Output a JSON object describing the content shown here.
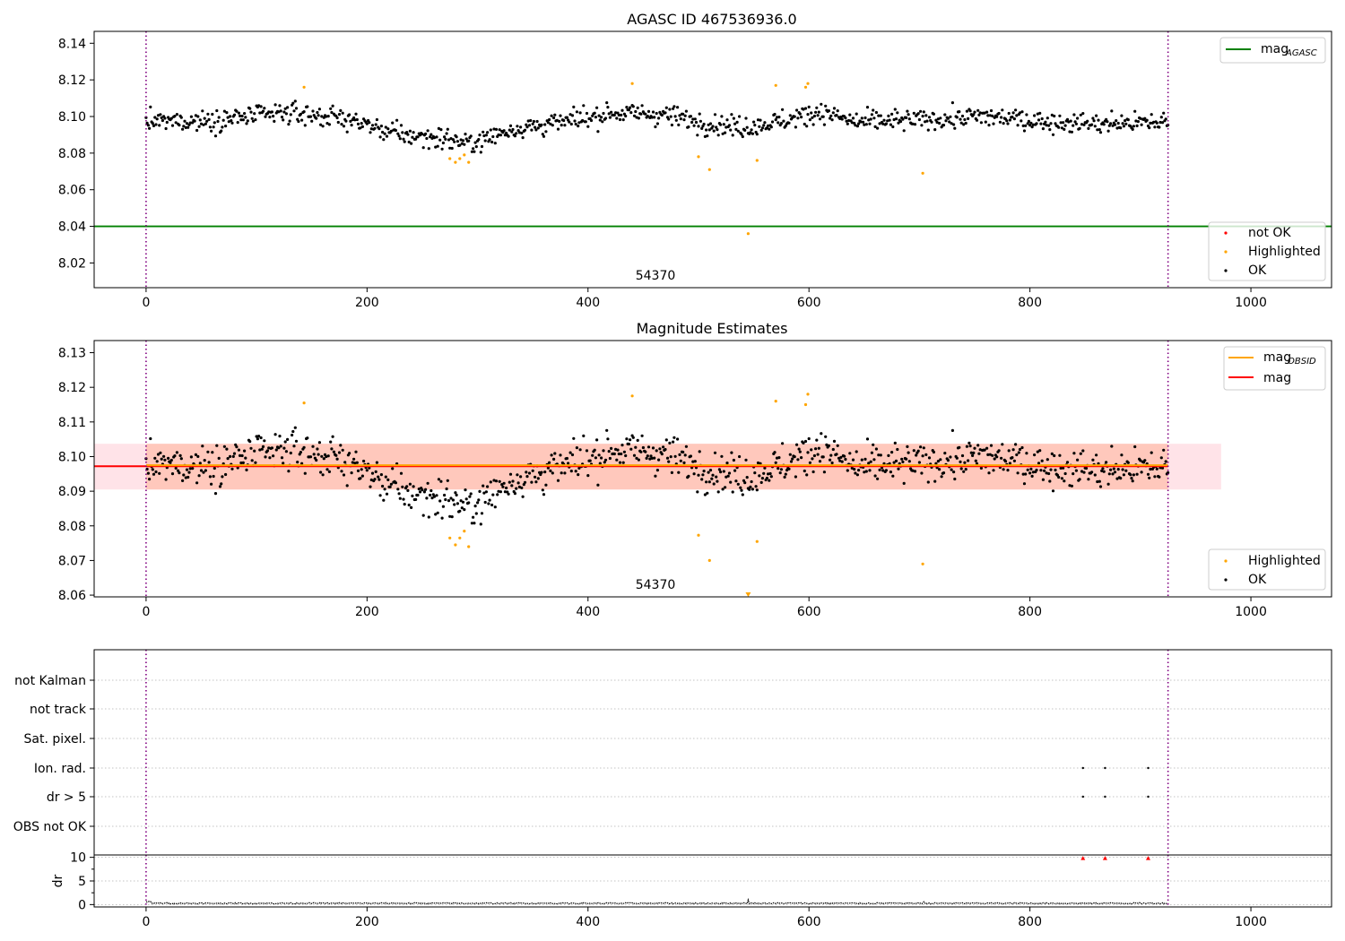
{
  "chart_data": [
    {
      "type": "scatter",
      "title": "AGASC ID 467536936.0",
      "xlabel": "",
      "ylabel": "",
      "xlim": [
        -47,
        1073
      ],
      "ylim": [
        8.0065,
        8.1465
      ],
      "x_ticks": [
        0,
        200,
        400,
        600,
        800,
        1000
      ],
      "y_ticks": [
        8.02,
        8.04,
        8.06,
        8.08,
        8.1,
        8.12,
        8.14
      ],
      "y_tick_labels": [
        "8.02",
        "8.04",
        "8.06",
        "8.08",
        "8.10",
        "8.12",
        "8.14"
      ],
      "grid": false,
      "obsid_markers_x": [
        0,
        925
      ],
      "obsid_label": {
        "text": "54370",
        "x": 462,
        "y": 8.0105
      },
      "hlines": [
        {
          "name": "mag_AGASC",
          "y": 8.04,
          "x_end": 1073,
          "color": "#008000"
        }
      ],
      "legend_lines": {
        "placement": "top-right",
        "entries": [
          {
            "label": "mag",
            "sub": "AGASC",
            "color": "#008000"
          }
        ]
      },
      "legend_points": {
        "placement": "bottom-right",
        "entries": [
          {
            "label": "not OK",
            "color": "#ff0000"
          },
          {
            "label": "Highlighted",
            "color": "#ffa500"
          },
          {
            "label": "OK",
            "color": "#000000"
          }
        ]
      },
      "series": [
        {
          "name": "Highlighted",
          "color": "#ffa500",
          "points": [
            [
              143,
              8.116
            ],
            [
              275,
              8.077
            ],
            [
              280,
              8.075
            ],
            [
              284,
              8.077
            ],
            [
              288,
              8.079
            ],
            [
              292,
              8.075
            ],
            [
              440,
              8.118
            ],
            [
              500,
              8.078
            ],
            [
              510,
              8.071
            ],
            [
              545,
              8.036
            ],
            [
              553,
              8.076
            ],
            [
              570,
              8.117
            ],
            [
              597,
              8.116
            ],
            [
              599,
              8.118
            ],
            [
              703,
              8.069
            ]
          ]
        },
        {
          "name": "OK",
          "color": "#000000",
          "generated": true,
          "x_range": [
            0,
            925
          ]
        }
      ]
    },
    {
      "type": "scatter",
      "title": "Magnitude Estimates",
      "xlabel": "",
      "ylabel": "",
      "xlim": [
        -47,
        1073
      ],
      "ylim": [
        8.0595,
        8.1335
      ],
      "x_ticks": [
        0,
        200,
        400,
        600,
        800,
        1000
      ],
      "y_ticks": [
        8.06,
        8.07,
        8.08,
        8.09,
        8.1,
        8.11,
        8.12,
        8.13
      ],
      "y_tick_labels": [
        "8.06",
        "8.07",
        "8.08",
        "8.09",
        "8.10",
        "8.11",
        "8.12",
        "8.13"
      ],
      "grid": false,
      "obsid_markers_x": [
        0,
        925
      ],
      "obsid_label": {
        "text": "54370",
        "x": 462,
        "y": 8.0615
      },
      "bands": [
        {
          "name": "mag_OBSID_band",
          "x_range": [
            0,
            925
          ],
          "y_range": [
            8.0905,
            8.1037
          ],
          "color": "#ffa07a"
        },
        {
          "name": "mag_band",
          "x_range": [
            -47,
            973
          ],
          "y_range": [
            8.0905,
            8.1037
          ],
          "color": "#ffc0cb"
        }
      ],
      "hlines": [
        {
          "name": "mag",
          "y": 8.0972,
          "x_start": -47,
          "x_end": 925,
          "color": "#ff0000"
        },
        {
          "name": "mag_OBSID",
          "y": 8.0975,
          "x_start": 0,
          "x_end": 925,
          "color": "#ffa500"
        }
      ],
      "legend_lines": {
        "placement": "top-right",
        "entries": [
          {
            "label": "mag",
            "sub": "OBSID",
            "color": "#ffa500"
          },
          {
            "label": "mag",
            "sub": "",
            "color": "#ff0000"
          }
        ]
      },
      "legend_points": {
        "placement": "bottom-right",
        "entries": [
          {
            "label": "Highlighted",
            "color": "#ffa500"
          },
          {
            "label": "OK",
            "color": "#000000"
          }
        ]
      },
      "series": [
        {
          "name": "Highlighted",
          "color": "#ffa500",
          "points": [
            [
              143,
              8.1155
            ],
            [
              275,
              8.0765
            ],
            [
              280,
              8.0745
            ],
            [
              284,
              8.0765
            ],
            [
              288,
              8.0785
            ],
            [
              292,
              8.074
            ],
            [
              440,
              8.1175
            ],
            [
              500,
              8.0773
            ],
            [
              510,
              8.07
            ],
            [
              545,
              8.0603
            ],
            [
              553,
              8.0755
            ],
            [
              570,
              8.116
            ],
            [
              597,
              8.115
            ],
            [
              599,
              8.118
            ],
            [
              703,
              8.069
            ]
          ]
        },
        {
          "name": "OK",
          "color": "#000000",
          "generated": true,
          "x_range": [
            0,
            925
          ]
        }
      ]
    },
    {
      "type": "scatter",
      "title": "",
      "xlabel": "",
      "ylabel": "",
      "xlim": [
        -47,
        1073
      ],
      "categories": [
        "OBS not OK",
        "dr > 5",
        "Ion. rad.",
        "Sat. pixel.",
        "not track",
        "not Kalman"
      ],
      "grid": "y dotted",
      "obsid_markers_x": [
        0,
        925
      ],
      "series": [
        {
          "name": "dr > 5",
          "points": [
            [
              848,
              "dr > 5"
            ],
            [
              868,
              "dr > 5"
            ],
            [
              907,
              "dr > 5"
            ]
          ]
        },
        {
          "name": "Ion. rad.",
          "points": [
            [
              848,
              "Ion. rad."
            ],
            [
              868,
              "Ion. rad."
            ],
            [
              907,
              "Ion. rad."
            ]
          ]
        }
      ]
    },
    {
      "type": "scatter",
      "title": "",
      "xlabel": "",
      "ylabel": "dr",
      "xlim": [
        -47,
        1073
      ],
      "ylim": [
        -0.5,
        10.5
      ],
      "x_ticks": [
        0,
        200,
        400,
        600,
        800,
        1000
      ],
      "y_ticks": [
        0,
        5,
        10
      ],
      "y_minor_ticks": [
        2.5,
        7.5
      ],
      "grid": "y dotted",
      "obsid_markers_x": [
        0,
        925
      ],
      "series": [
        {
          "name": "dr",
          "color": "#000000",
          "generated": true,
          "x_range": [
            0,
            925
          ],
          "typical": 0.25
        },
        {
          "name": "dr clipped",
          "color": "#ff0000",
          "marker": "triangle",
          "points": [
            [
              848,
              10
            ],
            [
              868,
              10
            ],
            [
              907,
              10
            ]
          ]
        }
      ]
    }
  ]
}
